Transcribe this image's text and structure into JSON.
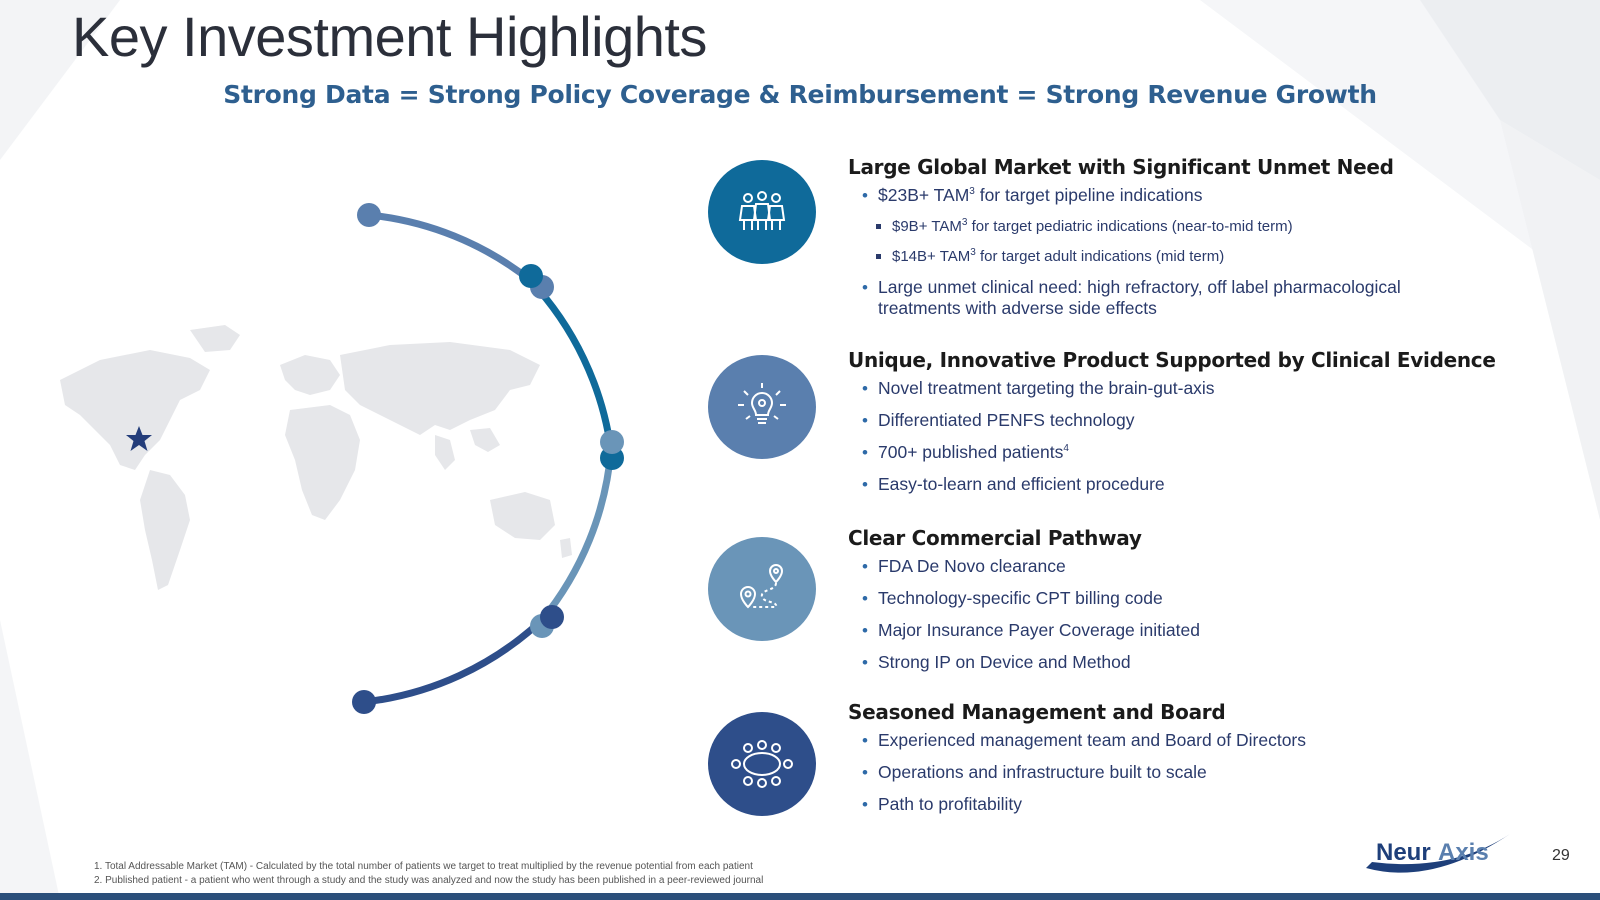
{
  "title": "Key Investment Highlights",
  "subtitle": "Strong Data = Strong Policy Coverage & Reimbursement = Strong Revenue Growth",
  "colors": {
    "circle1": "#0f6a9a",
    "circle2": "#5a7fae",
    "circle3": "#6a95b8",
    "circle4": "#2e4e8a",
    "heading_text": "#1b1b1b",
    "bullet_text": "#2a3a6b"
  },
  "sections": [
    {
      "heading": "Large Global Market with Significant Unmet Need",
      "icon": "family-icon",
      "b1_pre": "$23B+ TAM",
      "b1_sup": "3",
      "b1_post": " for target pipeline indications",
      "s1_pre": "$9B+ TAM",
      "s1_sup": "3",
      "s1_post": " for target pediatric indications (near-to-mid term)",
      "s2_pre": "$14B+ TAM",
      "s2_sup": "3",
      "s2_post": " for target adult indications (mid term)",
      "b2": "Large unmet clinical need: high refractory, off label pharmacological treatments with adverse side effects"
    },
    {
      "heading": "Unique, Innovative Product Supported by Clinical Evidence",
      "icon": "lightbulb-gear-icon",
      "b1": "Novel treatment targeting the brain-gut-axis",
      "b2": "Differentiated PENFS technology",
      "b3_pre": "700+ published patients",
      "b3_sup": "4",
      "b4": "Easy-to-learn and efficient procedure"
    },
    {
      "heading": "Clear Commercial Pathway",
      "icon": "route-pins-icon",
      "b1": "FDA De Novo clearance",
      "b2": "Technology-specific CPT billing code",
      "b3": "Major Insurance Payer Coverage initiated",
      "b4": "Strong IP on Device and Method"
    },
    {
      "heading": "Seasoned Management and Board",
      "icon": "boardroom-table-icon",
      "b1": "Experienced management team and Board of Directors",
      "b2": "Operations and infrastructure built to scale",
      "b3": "Path to profitability"
    }
  ],
  "footnotes": [
    "1. Total Addressable Market (TAM) - Calculated by the total number of patients we target to treat multiplied by the revenue potential from each patient",
    "2. Published patient - a patient who went through a study and the study was analyzed and now the study has been published in a peer-reviewed journal"
  ],
  "logo": {
    "part1": "Neur",
    "part2": "Axis"
  },
  "page_number": "29"
}
